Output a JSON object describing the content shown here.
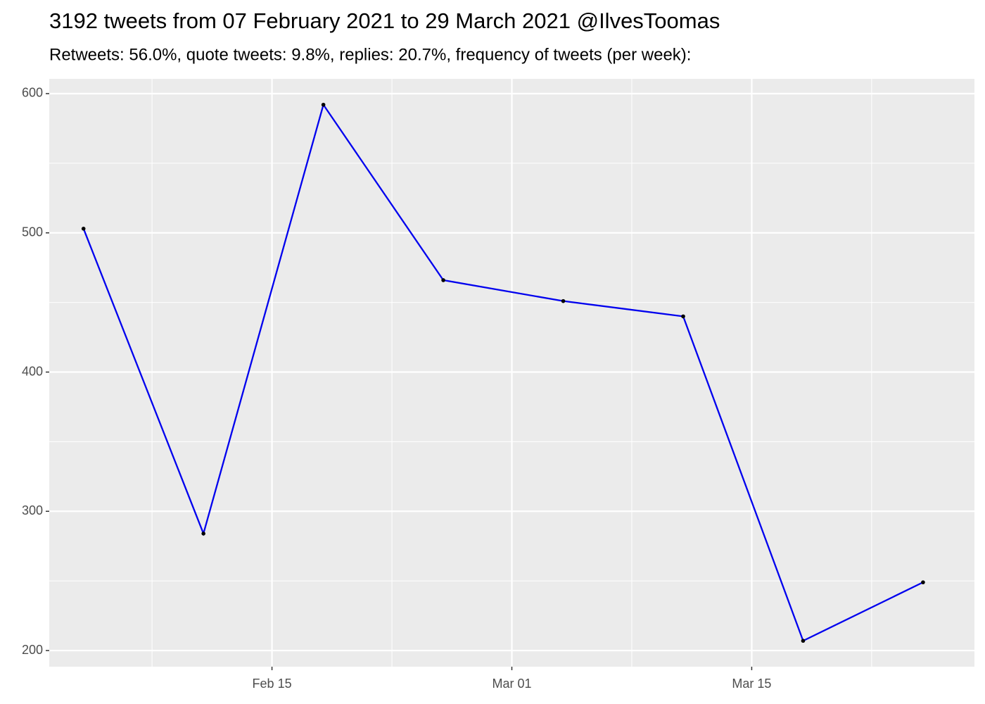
{
  "chart_data": {
    "type": "line",
    "title": "3192 tweets from 07 February 2021 to 29 March 2021 @IlvesToomas",
    "subtitle": "Retweets: 56.0%, quote tweets: 9.8%, replies: 20.7%, frequency of tweets (per week):",
    "x": [
      "Feb 04",
      "Feb 11",
      "Feb 18",
      "Feb 25",
      "Mar 04",
      "Mar 11",
      "Mar 18",
      "Mar 25"
    ],
    "series": [
      {
        "color": "#0000ee",
        "values": [
          503,
          284,
          592,
          466,
          451,
          440,
          207,
          249
        ]
      }
    ],
    "point_color": "#000000",
    "xlim": [
      "Feb 02",
      "Mar 28"
    ],
    "xticks": [
      "Feb 15",
      "Mar 01",
      "Mar 15"
    ],
    "xminorticks": [
      "Feb 08",
      "Feb 22",
      "Mar 08",
      "Mar 22"
    ],
    "ylim": [
      188.4,
      610.6
    ],
    "yticks": [
      200,
      300,
      400,
      500,
      600
    ],
    "yminorticks": [
      250,
      350,
      450,
      550
    ],
    "grid": true
  }
}
